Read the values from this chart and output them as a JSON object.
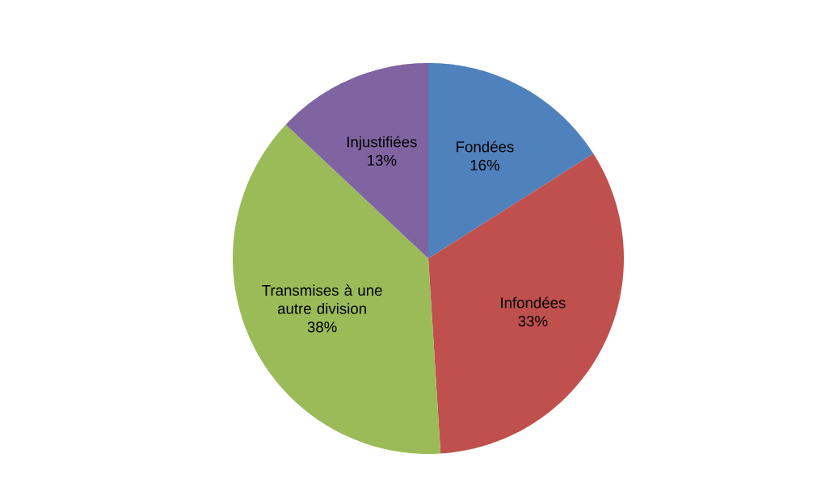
{
  "chart_data": {
    "type": "pie",
    "categories": [
      "Fondées",
      "Infondées",
      "Transmises à une autre division",
      "Injustifiées"
    ],
    "values": [
      16,
      33,
      38,
      13
    ],
    "value_labels": [
      "16%",
      "33%",
      "38%",
      "13%"
    ],
    "colors": [
      "#4f81bd",
      "#c0504d",
      "#9bbb59",
      "#8064a2"
    ]
  }
}
